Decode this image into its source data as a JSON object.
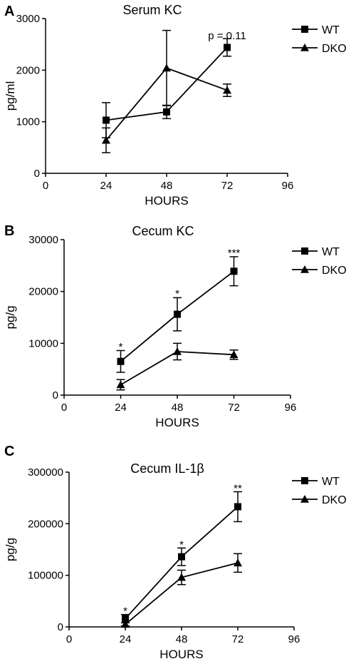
{
  "chart_data": [
    {
      "type": "line",
      "panel": "A",
      "title": "Serum KC",
      "xlabel": "HOURS",
      "ylabel": "pg/ml",
      "xlim": [
        0,
        96
      ],
      "ylim": [
        0,
        3000
      ],
      "xticks": [
        0,
        24,
        48,
        72,
        96
      ],
      "yticks": [
        0,
        1000,
        2000,
        3000
      ],
      "x": [
        24,
        48,
        72
      ],
      "legend": "top-right",
      "series": [
        {
          "name": "WT",
          "marker": "square",
          "values": [
            1030,
            1190,
            2440
          ],
          "errors": [
            340,
            130,
            170
          ]
        },
        {
          "name": "DKO",
          "marker": "triangle",
          "values": [
            640,
            2040,
            1610
          ],
          "errors": [
            240,
            730,
            120
          ]
        }
      ],
      "annotations": [
        {
          "x": 72,
          "y": 2600,
          "text": "p = 0.11"
        }
      ]
    },
    {
      "type": "line",
      "panel": "B",
      "title": "Cecum KC",
      "xlabel": "HOURS",
      "ylabel": "pg/g",
      "xlim": [
        0,
        96
      ],
      "ylim": [
        0,
        30000
      ],
      "xticks": [
        0,
        24,
        48,
        72,
        96
      ],
      "yticks": [
        0,
        10000,
        20000,
        30000
      ],
      "x": [
        24,
        48,
        72
      ],
      "legend": "top-right",
      "series": [
        {
          "name": "WT",
          "marker": "square",
          "values": [
            6500,
            15600,
            23900
          ],
          "errors": [
            2100,
            3200,
            2800
          ]
        },
        {
          "name": "DKO",
          "marker": "triangle",
          "values": [
            2000,
            8400,
            7800
          ],
          "errors": [
            1000,
            1600,
            900
          ]
        }
      ],
      "annotations": [
        {
          "x": 24,
          "y": 8700,
          "text": "*"
        },
        {
          "x": 48,
          "y": 18900,
          "text": "*"
        },
        {
          "x": 72,
          "y": 26800,
          "text": "***"
        }
      ]
    },
    {
      "type": "line",
      "panel": "C",
      "title": "Cecum IL-1β",
      "xlabel": "HOURS",
      "ylabel": "pg/g",
      "xlim": [
        0,
        96
      ],
      "ylim": [
        0,
        300000
      ],
      "xticks": [
        0,
        24,
        48,
        72,
        96
      ],
      "yticks": [
        0,
        100000,
        200000,
        300000
      ],
      "x": [
        24,
        48,
        72
      ],
      "legend": "top-right",
      "series": [
        {
          "name": "WT",
          "marker": "square",
          "values": [
            16000,
            136000,
            233000
          ],
          "errors": [
            8000,
            17000,
            29000
          ]
        },
        {
          "name": "DKO",
          "marker": "triangle",
          "values": [
            5000,
            96000,
            124000
          ],
          "errors": [
            3000,
            14000,
            18000
          ]
        }
      ],
      "annotations": [
        {
          "x": 24,
          "y": 24000,
          "text": "*"
        },
        {
          "x": 48,
          "y": 153000,
          "text": "*"
        },
        {
          "x": 72,
          "y": 262000,
          "text": "**"
        }
      ]
    }
  ]
}
